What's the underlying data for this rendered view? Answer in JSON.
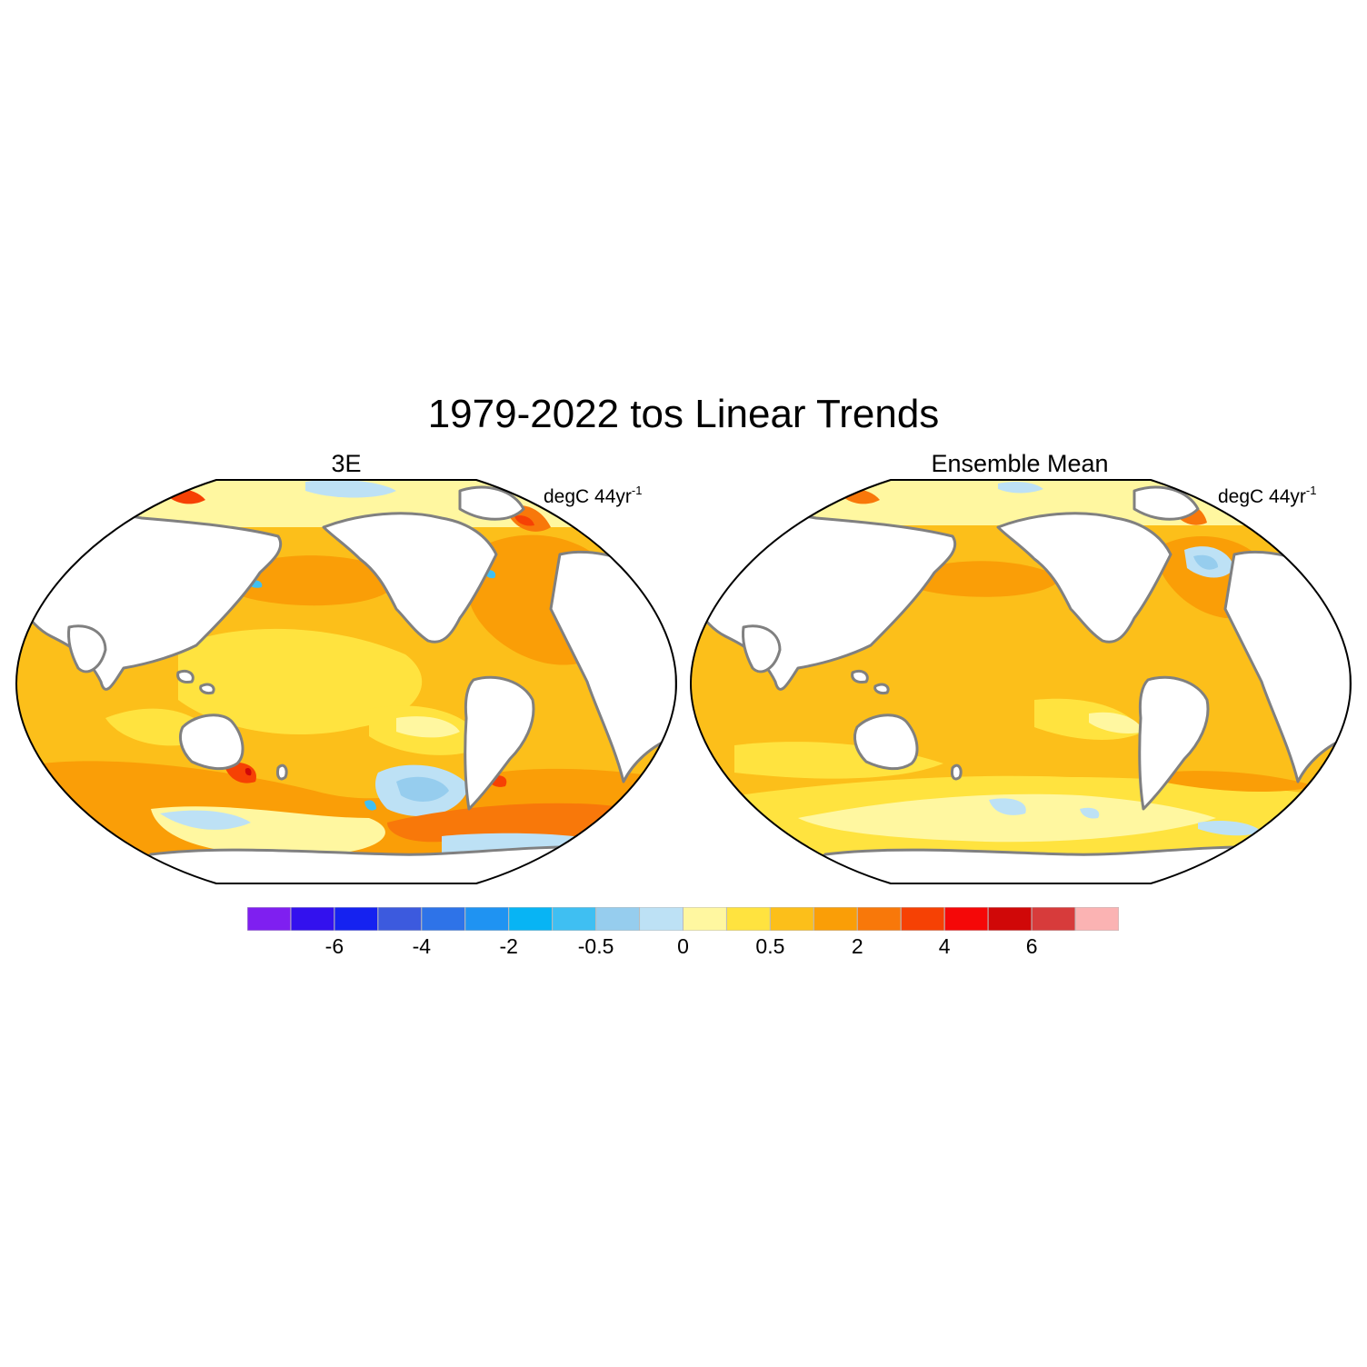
{
  "title": "1979-2022 tos Linear Trends",
  "panels": [
    {
      "id": "left",
      "title": "3E",
      "units_main": "degC 44yr",
      "units_sup": "-1"
    },
    {
      "id": "right",
      "title": "Ensemble Mean",
      "units_main": "degC 44yr",
      "units_sup": "-1"
    }
  ],
  "colorbar": {
    "colors": [
      "#7f1ff0",
      "#3311ee",
      "#1522f0",
      "#3c5ade",
      "#2e73e8",
      "#1f93f2",
      "#08b4f4",
      "#3fbff2",
      "#96cdee",
      "#bde1f5",
      "#fff7a0",
      "#ffe33f",
      "#fcbf1a",
      "#fa9e07",
      "#f8780a",
      "#f64104",
      "#f50808",
      "#d00808",
      "#d73b3b",
      "#fbb3b3"
    ],
    "labels": [
      "-6",
      "-4",
      "-2",
      "-0.5",
      "0",
      "0.5",
      "2",
      "4",
      "6"
    ]
  }
}
